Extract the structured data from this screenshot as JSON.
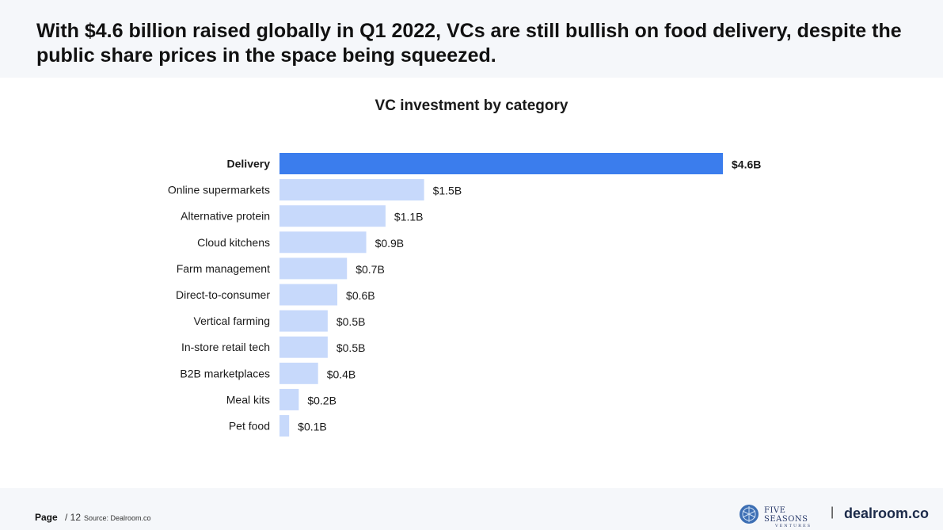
{
  "headline": "With $4.6 billion raised globally in Q1 2022, VCs are still bullish on food delivery, despite the public share prices in the space being squeezed.",
  "chart_data": {
    "type": "bar",
    "orientation": "horizontal",
    "title": "VC investment by category",
    "xlabel": "",
    "ylabel": "",
    "unit": "$B",
    "xlim": [
      0,
      4.6
    ],
    "categories": [
      "Delivery",
      "Online supermarkets",
      "Alternative protein",
      "Cloud kitchens",
      "Farm management",
      "Direct-to-consumer",
      "Vertical farming",
      "In-store retail tech",
      "B2B marketplaces",
      "Meal kits",
      "Pet food"
    ],
    "values": [
      4.6,
      1.5,
      1.1,
      0.9,
      0.7,
      0.6,
      0.5,
      0.5,
      0.4,
      0.2,
      0.1
    ],
    "labels": [
      "$4.6B",
      "$1.5B",
      "$1.1B",
      "$0.9B",
      "$0.7B",
      "$0.6B",
      "$0.5B",
      "$0.5B",
      "$0.4B",
      "$0.2B",
      "$0.1B"
    ],
    "highlight": "Delivery",
    "colors": {
      "highlight": "#3b7ded",
      "default": "#c7d9fb"
    }
  },
  "footer": {
    "page_label": "Page",
    "page_number": "/ 12",
    "source": "Source: Dealroom.co",
    "partner_logo_line1": "FIVE SEASONS",
    "partner_logo_line2": "VENTURES",
    "separator": "|",
    "brand": "dealroom.co"
  }
}
